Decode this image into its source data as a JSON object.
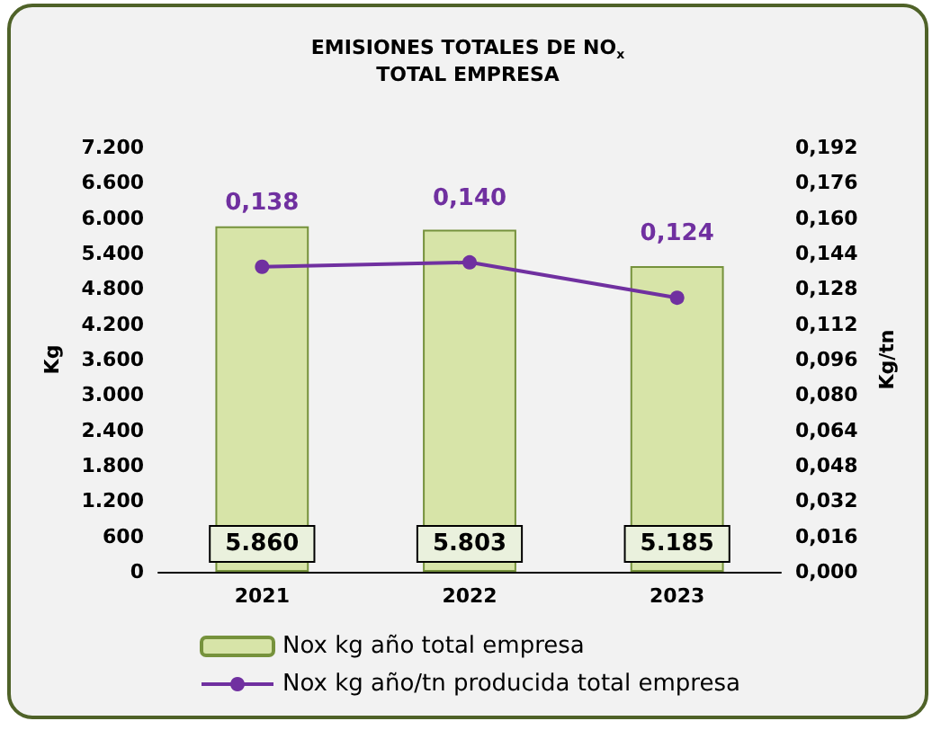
{
  "chart_data": {
    "type": "bar",
    "title": "EMISIONES TOTALES DE NO$_{x}$",
    "subtitle": "TOTAL EMPRESA",
    "ylabel": "Kg",
    "y2label": "Kg/tn",
    "categories": [
      "2021",
      "2022",
      "2023"
    ],
    "series": [
      {
        "name": "Nox kg año total empresa",
        "color": "#d7e4a8",
        "values": [
          5860,
          5803,
          5185
        ],
        "value_labels": [
          "5.860",
          "5.803",
          "5.185"
        ]
      },
      {
        "name": "Nox kg año/tn producida total empresa",
        "type": "line",
        "axis": "y2",
        "color": "#7030a0",
        "values": [
          0.138,
          0.14,
          0.124
        ],
        "value_labels": [
          "0,138",
          "0,140",
          "0,124"
        ]
      }
    ],
    "ylim": [
      0,
      7200
    ],
    "yticks": [
      {
        "value": 0,
        "label": "0"
      },
      {
        "value": 600,
        "label": "600"
      },
      {
        "value": 1200,
        "label": "1.200"
      },
      {
        "value": 1800,
        "label": "1.800"
      },
      {
        "value": 2400,
        "label": "2.400"
      },
      {
        "value": 3000,
        "label": "3.000"
      },
      {
        "value": 3600,
        "label": "3.600"
      },
      {
        "value": 4200,
        "label": "4.200"
      },
      {
        "value": 4800,
        "label": "4.800"
      },
      {
        "value": 5400,
        "label": "5.400"
      },
      {
        "value": 6000,
        "label": "6.000"
      },
      {
        "value": 6600,
        "label": "6.600"
      },
      {
        "value": 7200,
        "label": "7.200"
      }
    ],
    "y2lim": [
      0,
      0.192
    ],
    "y2ticks": [
      {
        "value": 0,
        "label": "0,000"
      },
      {
        "value": 0.016,
        "label": "0,016"
      },
      {
        "value": 0.032,
        "label": "0,032"
      },
      {
        "value": 0.048,
        "label": "0,048"
      },
      {
        "value": 0.064,
        "label": "0,064"
      },
      {
        "value": 0.08,
        "label": "0,080"
      },
      {
        "value": 0.096,
        "label": "0,096"
      },
      {
        "value": 0.112,
        "label": "0,112"
      },
      {
        "value": 0.128,
        "label": "0,128"
      },
      {
        "value": 0.144,
        "label": "0,144"
      },
      {
        "value": 0.16,
        "label": "0,160"
      },
      {
        "value": 0.176,
        "label": "0,176"
      },
      {
        "value": 0.192,
        "label": "0,192"
      }
    ],
    "legend": "bottom",
    "marker": "circle",
    "grid": false
  }
}
